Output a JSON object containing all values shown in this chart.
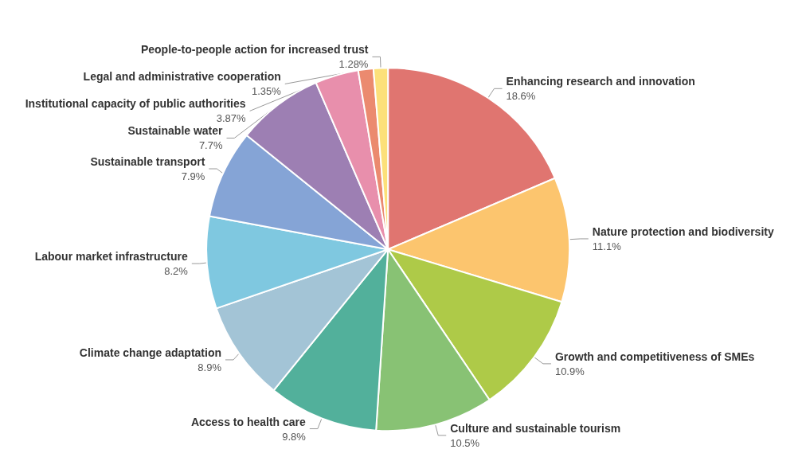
{
  "chart_data": {
    "type": "pie",
    "categories": [
      "Enhancing research and innovation",
      "Nature protection and biodiversity",
      "Growth and competitiveness of SMEs",
      "Culture and sustainable tourism",
      "Access to health care",
      "Climate change adaptation",
      "Labour market infrastructure",
      "Sustainable transport",
      "Sustainable water",
      "Institutional capacity of public authorities",
      "Legal and administrative cooperation",
      "People-to-people action for increased trust"
    ],
    "values": [
      18.6,
      11.1,
      10.9,
      10.5,
      9.8,
      8.9,
      8.2,
      7.9,
      7.7,
      3.87,
      1.35,
      1.28
    ],
    "value_labels": [
      "18.6%",
      "11.1%",
      "10.9%",
      "10.5%",
      "9.8%",
      "8.9%",
      "8.2%",
      "7.9%",
      "7.7%",
      "3.87%",
      "1.35%",
      "1.28%"
    ],
    "colors": [
      "#e07570",
      "#fcc56e",
      "#aeca48",
      "#88c274",
      "#52b09b",
      "#a3c4d6",
      "#7fc8e0",
      "#85a4d6",
      "#9d7fb3",
      "#e88fac",
      "#eb8a6f",
      "#fce07a"
    ],
    "legend": false
  }
}
